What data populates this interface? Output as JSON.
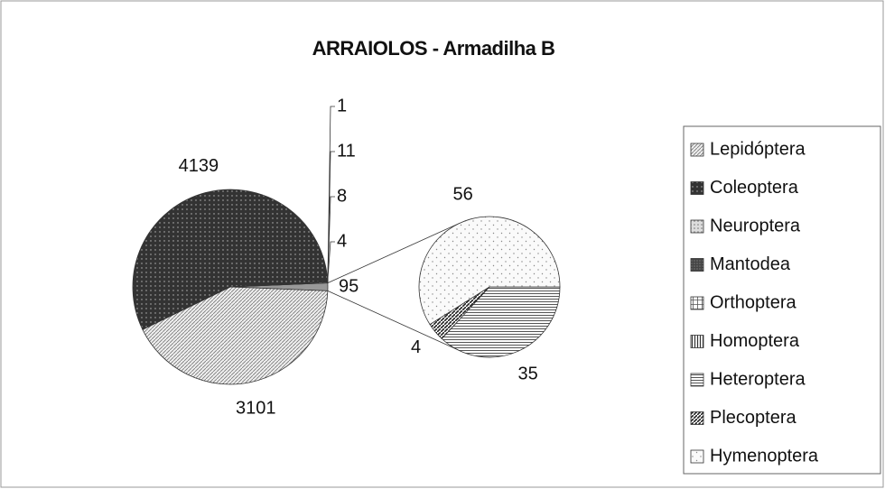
{
  "chart_data": {
    "type": "pie-of-pie",
    "title": "ARRAIOLOS - Armadilha B",
    "categories": [
      "Lepidóptera",
      "Coleoptera",
      "Neuroptera",
      "Mantodea",
      "Orthoptera",
      "Homoptera",
      "Heteroptera",
      "Plecoptera",
      "Hymenoptera"
    ],
    "values": [
      3101,
      4139,
      4,
      8,
      11,
      1,
      35,
      4,
      56
    ],
    "other": {
      "value": 95
    },
    "legend": "right"
  }
}
